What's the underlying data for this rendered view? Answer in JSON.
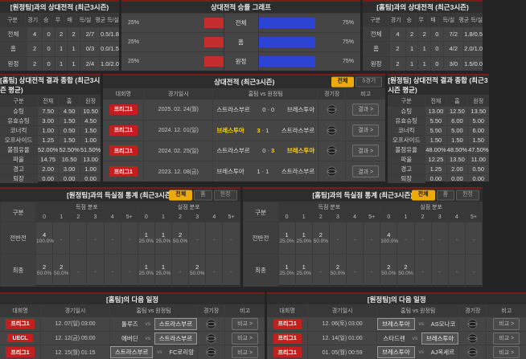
{
  "colors": {
    "accent_red": "#c41f1f",
    "accent_yellow": "#edaa0d",
    "bar_red": "#c52c2c",
    "bar_blue": "#2b44d4",
    "win_text": "#ffd400"
  },
  "misc": {
    "dash": "-",
    "vs": "vs",
    "score_sep": "-"
  },
  "panels": {
    "h2h_away": {
      "title": "[원정팀]과의 상대전적 (최근3시즌)",
      "headers": [
        "구분",
        "경기",
        "승",
        "무",
        "패",
        "득/실",
        "평균 득/실"
      ],
      "rows": [
        {
          "label": "전체",
          "values": [
            "4",
            "0",
            "2",
            "2",
            "2/7",
            "0.5/1.8"
          ]
        },
        {
          "label": "홈",
          "values": [
            "2",
            "0",
            "1",
            "1",
            "0/3",
            "0.0/1.5"
          ]
        },
        {
          "label": "원정",
          "values": [
            "2",
            "0",
            "1",
            "1",
            "2/4",
            "1.0/2.0"
          ]
        }
      ]
    },
    "winrate_graph": {
      "title": "상대전적 승률 그래프",
      "chart_data": {
        "type": "bar",
        "categories": [
          "전체",
          "홈",
          "원정"
        ],
        "series": [
          {
            "name": "left-red",
            "values": [
              25,
              25,
              25
            ]
          },
          {
            "name": "right-blue",
            "values": [
              75,
              75,
              75
            ]
          }
        ],
        "value_suffix": "%"
      }
    },
    "h2h_home": {
      "title": "[홈팀]과의 상대전적 (최근3시즌)",
      "headers": [
        "구분",
        "경기",
        "승",
        "무",
        "패",
        "득/실",
        "평균 득/실"
      ],
      "rows": [
        {
          "label": "전체",
          "values": [
            "4",
            "2",
            "2",
            "0",
            "7/2",
            "1.8/0.5"
          ]
        },
        {
          "label": "홈",
          "values": [
            "2",
            "1",
            "1",
            "0",
            "4/2",
            "2.0/1.0"
          ]
        },
        {
          "label": "원정",
          "values": [
            "2",
            "1",
            "1",
            "0",
            "3/0",
            "1.5/0.0"
          ]
        }
      ]
    },
    "stats_home": {
      "title": "[홈팀] 상대전적 결과 종합 (최근3시즌 평균)",
      "headers": [
        "구분",
        "전체",
        "홈",
        "원정"
      ],
      "rows": [
        [
          "슈팅",
          "7.50",
          "4.50",
          "10.50"
        ],
        [
          "유효슈팅",
          "3.00",
          "1.50",
          "4.50"
        ],
        [
          "코너킥",
          "1.00",
          "0.50",
          "1.50"
        ],
        [
          "오프사이드",
          "1.25",
          "1.50",
          "1.00"
        ],
        [
          "볼점유율",
          "52.00%",
          "52.50%",
          "51.50%"
        ],
        [
          "파울",
          "14.75",
          "16.50",
          "13.00"
        ],
        [
          "경고",
          "2.00",
          "3.00",
          "1.00"
        ],
        [
          "퇴장",
          "0.00",
          "0.00",
          "0.00"
        ]
      ]
    },
    "h2h_matches": {
      "title": "상대전적 (최근3시즌)",
      "filters": [
        {
          "label": "전체",
          "active": true
        },
        {
          "label": "5경기",
          "active": false
        }
      ],
      "headers": [
        "대회명",
        "경기일시",
        "홈팀 vs 원정팀",
        "경기장",
        "비고"
      ],
      "action": "결과 >",
      "rows": [
        {
          "league": "프리그1",
          "date": "2025. 02. 24(월)",
          "home": "스트라스부르",
          "home_score": "0",
          "away_score": "0",
          "away": "브레스투아",
          "winner": "none"
        },
        {
          "league": "프리그1",
          "date": "2024. 12. 01(일)",
          "home": "브레스투아",
          "home_score": "3",
          "away_score": "1",
          "away": "스트라스부르",
          "winner": "home"
        },
        {
          "league": "프리그1",
          "date": "2024. 02. 25(일)",
          "home": "스트라스부르",
          "home_score": "0",
          "away_score": "3",
          "away": "브레스투아",
          "winner": "away"
        },
        {
          "league": "프리그1",
          "date": "2023. 12. 08(금)",
          "home": "브레스투아",
          "home_score": "1",
          "away_score": "1",
          "away": "스트라스부르",
          "winner": "none"
        }
      ]
    },
    "stats_away": {
      "title": "[원정팀] 상대전적 결과 종합 (최근3시즌 평균)",
      "headers": [
        "구분",
        "전체",
        "홈",
        "원정"
      ],
      "rows": [
        [
          "슈팅",
          "13.00",
          "12.50",
          "13.50"
        ],
        [
          "유효슈팅",
          "5.50",
          "6.00",
          "5.00"
        ],
        [
          "코너킥",
          "5.50",
          "5.00",
          "6.00"
        ],
        [
          "오프사이드",
          "1.50",
          "1.50",
          "1.50"
        ],
        [
          "볼점유율",
          "48.00%",
          "48.50%",
          "47.50%"
        ],
        [
          "파울",
          "12.25",
          "13.50",
          "11.00"
        ],
        [
          "경고",
          "1.25",
          "2.00",
          "0.50"
        ],
        [
          "퇴장",
          "0.00",
          "0.00",
          "0.00"
        ]
      ]
    },
    "goals_away": {
      "title": "[원정팀]과의 득실점 통계 (최근3시즌)",
      "filters": [
        {
          "label": "전체",
          "active": true
        },
        {
          "label": "홈",
          "active": false
        },
        {
          "label": "원정",
          "active": false
        }
      ],
      "group_headers": [
        "구분",
        "득점 분포",
        "실점 분포"
      ],
      "bins": [
        "0",
        "1",
        "2",
        "3",
        "4",
        "5+"
      ],
      "rows": [
        {
          "label": "전반전",
          "scored": [
            [
              "4",
              "100.0%"
            ],
            null,
            null,
            null,
            null,
            null
          ],
          "conceded": [
            [
              "1",
              "25.0%"
            ],
            [
              "1",
              "25.0%"
            ],
            [
              "2",
              "50.0%"
            ],
            null,
            null,
            null
          ]
        },
        {
          "label": "최종",
          "scored": [
            [
              "2",
              "50.0%"
            ],
            [
              "2",
              "50.0%"
            ],
            null,
            null,
            null,
            null
          ],
          "conceded": [
            [
              "1",
              "25.0%"
            ],
            [
              "1",
              "25.0%"
            ],
            null,
            [
              "2",
              "50.0%"
            ],
            null,
            null
          ]
        }
      ]
    },
    "goals_home": {
      "title": "[홈팀]과의 득실점 통계 (최근3시즌)",
      "filters": [
        {
          "label": "전체",
          "active": true
        },
        {
          "label": "홈",
          "active": false
        },
        {
          "label": "원정",
          "active": false
        }
      ],
      "group_headers": [
        "구분",
        "득점 분포",
        "실점 분포"
      ],
      "bins": [
        "0",
        "1",
        "2",
        "3",
        "4",
        "5+"
      ],
      "rows": [
        {
          "label": "전반전",
          "scored": [
            [
              "1",
              "25.0%"
            ],
            [
              "1",
              "25.0%"
            ],
            [
              "2",
              "50.0%"
            ],
            null,
            null,
            null
          ],
          "conceded": [
            [
              "4",
              "100.0%"
            ],
            null,
            null,
            null,
            null,
            null
          ]
        },
        {
          "label": "최종",
          "scored": [
            [
              "1",
              "25.0%"
            ],
            [
              "1",
              "25.0%"
            ],
            null,
            [
              "2",
              "50.0%"
            ],
            null,
            null
          ],
          "conceded": [
            [
              "2",
              "50.0%"
            ],
            [
              "2",
              "50.0%"
            ],
            null,
            null,
            null,
            null
          ]
        }
      ]
    },
    "next_home": {
      "title": "[홈팀]의 다음 일정",
      "headers": [
        "대회명",
        "경기일시",
        "홈팀 vs 원정팀",
        "경기장",
        "비고"
      ],
      "action": "비교 >",
      "rows": [
        {
          "league": "프리그1",
          "date": "12. 07(일) 03:00",
          "home": "툴루즈",
          "away": "스트라스부르",
          "focus": "away"
        },
        {
          "league": "UECL",
          "date": "12. 12(금) 05:00",
          "home": "에버딘",
          "away": "스트라스부르",
          "focus": "away"
        },
        {
          "league": "프리그1",
          "date": "12. 15(월) 01:15",
          "home": "스트라스부르",
          "away": "FC로리앙",
          "focus": "home"
        }
      ]
    },
    "next_away": {
      "title": "[원정팀]의 다음 일정",
      "headers": [
        "대회명",
        "경기일시",
        "홈팀 vs 원정팀",
        "경기장",
        "비고"
      ],
      "action": "비교 >",
      "rows": [
        {
          "league": "프리그1",
          "date": "12. 06(토) 03:00",
          "home": "브레스투아",
          "away": "AS모나코",
          "focus": "home"
        },
        {
          "league": "프리그1",
          "date": "12. 14(일) 01:00",
          "home": "스타드렌",
          "away": "브레스투아",
          "focus": "away"
        },
        {
          "league": "프리그1",
          "date": "01. 05(월) 00:59",
          "home": "브레스투아",
          "away": "AJ옥세르",
          "focus": "home"
        }
      ]
    }
  }
}
